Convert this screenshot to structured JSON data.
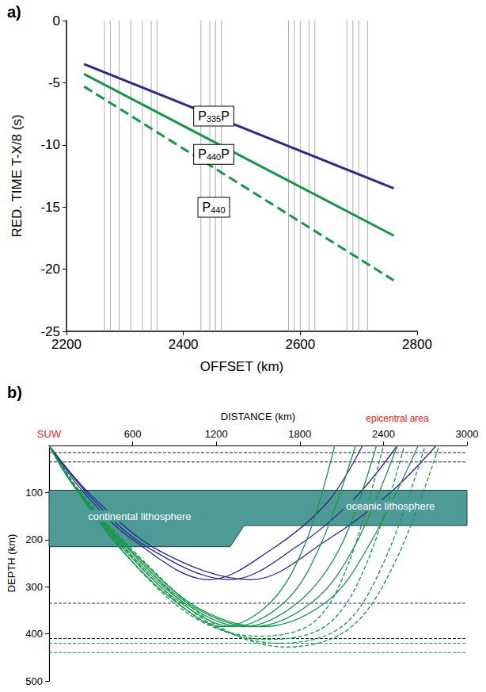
{
  "chart_data": [
    {
      "type": "line",
      "panel_label": "a)",
      "x_label": "OFFSET (km)",
      "y_label": "RED. TIME T-X/8 (s)",
      "xlim": [
        2200,
        2800
      ],
      "xticks": [
        2200,
        2400,
        2600,
        2800
      ],
      "ylim": [
        -25,
        0
      ],
      "yticks": [
        -25,
        -20,
        -15,
        -10,
        -5,
        0
      ],
      "grid": false,
      "trace_offsets": [
        2265,
        2275,
        2290,
        2310,
        2330,
        2345,
        2355,
        2430,
        2445,
        2455,
        2465,
        2580,
        2590,
        2600,
        2615,
        2625,
        2680,
        2690,
        2700,
        2715
      ],
      "trace_color": "#9a9a9a",
      "series": [
        {
          "name": "P335P",
          "color": "#2b2a8a",
          "line_style": "solid",
          "x": [
            2230,
            2760
          ],
          "values": [
            -3.5,
            -13.5
          ]
        },
        {
          "name": "P440P",
          "color": "#17964a",
          "line_style": "solid",
          "x": [
            2230,
            2760
          ],
          "values": [
            -4.3,
            -17.3
          ]
        },
        {
          "name": "P440",
          "color": "#17964a",
          "line_style": "dashed",
          "x": [
            2230,
            2760
          ],
          "values": [
            -5.3,
            -20.9
          ]
        }
      ]
    },
    {
      "type": "line",
      "panel_label": "b)",
      "x_label": "DISTANCE (km)",
      "y_label": "DEPTH (km)",
      "xlim": [
        0,
        3000
      ],
      "xticks": [
        600,
        1200,
        1800,
        2400,
        3000
      ],
      "ylim": [
        0,
        500
      ],
      "yticks": [
        100,
        200,
        300,
        400,
        500
      ],
      "grid": false,
      "source": {
        "label": "SUW",
        "x": 0,
        "color": "#e0251b"
      },
      "epicentral": {
        "label": "epicentral area",
        "x": 2500,
        "color": "#e0251b"
      },
      "lithosphere": {
        "color": "#4e9a97",
        "top": [
          [
            0,
            95
          ],
          [
            3000,
            95
          ]
        ],
        "bottom": [
          [
            0,
            215
          ],
          [
            1300,
            215
          ],
          [
            1400,
            170
          ],
          [
            3000,
            170
          ]
        ],
        "labels": [
          "continental lithosphere",
          "oceanic lithosphere"
        ]
      },
      "interfaces": [
        {
          "depth": 15,
          "color": "#222222"
        },
        {
          "depth": 35,
          "color": "#222222"
        },
        {
          "depth": 335,
          "color": "#2b2a8a"
        },
        {
          "depth": 410,
          "color": "#222222"
        },
        {
          "depth": 420,
          "color": "#17964a"
        },
        {
          "depth": 440,
          "color": "#17964a"
        }
      ],
      "series": [
        {
          "name": "P335P",
          "color": "#2b2a8a",
          "line_style": "solid",
          "rays": [
            [
              [
                0,
                0
              ],
              [
                250,
                100
              ],
              [
                600,
                200
              ],
              [
                1150,
                285
              ],
              [
                1600,
                220
              ],
              [
                2000,
                120
              ],
              [
                2250,
                0
              ]
            ],
            [
              [
                0,
                0
              ],
              [
                300,
                110
              ],
              [
                700,
                215
              ],
              [
                1300,
                285
              ],
              [
                1800,
                210
              ],
              [
                2200,
                110
              ],
              [
                2500,
                0
              ]
            ],
            [
              [
                0,
                0
              ],
              [
                300,
                105
              ],
              [
                800,
                225
              ],
              [
                1450,
                285
              ],
              [
                2000,
                200
              ],
              [
                2450,
                100
              ],
              [
                2780,
                0
              ]
            ]
          ]
        },
        {
          "name": "P440P",
          "color": "#17964a",
          "line_style": "solid",
          "rays": [
            [
              [
                0,
                0
              ],
              [
                200,
                95
              ],
              [
                500,
                215
              ],
              [
                900,
                330
              ],
              [
                1250,
                385
              ],
              [
                1600,
                330
              ],
              [
                1850,
                200
              ],
              [
                2050,
                0
              ]
            ],
            [
              [
                0,
                0
              ],
              [
                200,
                95
              ],
              [
                550,
                225
              ],
              [
                950,
                335
              ],
              [
                1320,
                385
              ],
              [
                1700,
                330
              ],
              [
                1950,
                210
              ],
              [
                2200,
                0
              ]
            ],
            [
              [
                0,
                0
              ],
              [
                200,
                95
              ],
              [
                600,
                235
              ],
              [
                1000,
                340
              ],
              [
                1390,
                385
              ],
              [
                1800,
                330
              ],
              [
                2100,
                210
              ],
              [
                2350,
                0
              ]
            ],
            [
              [
                0,
                0
              ],
              [
                200,
                95
              ],
              [
                650,
                245
              ],
              [
                1050,
                345
              ],
              [
                1460,
                385
              ],
              [
                1900,
                330
              ],
              [
                2200,
                210
              ],
              [
                2500,
                0
              ]
            ],
            [
              [
                0,
                0
              ],
              [
                200,
                95
              ],
              [
                700,
                255
              ],
              [
                1100,
                350
              ],
              [
                1530,
                385
              ],
              [
                2000,
                330
              ],
              [
                2300,
                210
              ],
              [
                2650,
                0
              ]
            ]
          ]
        },
        {
          "name": "P440",
          "color": "#17964a",
          "line_style": "dashed",
          "rays": [
            [
              [
                0,
                0
              ],
              [
                250,
                115
              ],
              [
                700,
                280
              ],
              [
                1100,
                375
              ],
              [
                1500,
                405
              ],
              [
                1900,
                375
              ],
              [
                2150,
                250
              ],
              [
                2400,
                0
              ]
            ],
            [
              [
                0,
                0
              ],
              [
                250,
                112
              ],
              [
                750,
                285
              ],
              [
                1150,
                380
              ],
              [
                1575,
                412
              ],
              [
                2000,
                380
              ],
              [
                2280,
                250
              ],
              [
                2550,
                0
              ]
            ],
            [
              [
                0,
                0
              ],
              [
                250,
                110
              ],
              [
                800,
                290
              ],
              [
                1200,
                385
              ],
              [
                1650,
                420
              ],
              [
                2100,
                385
              ],
              [
                2400,
                250
              ],
              [
                2700,
                0
              ]
            ],
            [
              [
                0,
                0
              ],
              [
                250,
                108
              ],
              [
                850,
                295
              ],
              [
                1250,
                390
              ],
              [
                1700,
                428
              ],
              [
                2150,
                390
              ],
              [
                2480,
                250
              ],
              [
                2800,
                0
              ]
            ]
          ]
        }
      ]
    }
  ]
}
